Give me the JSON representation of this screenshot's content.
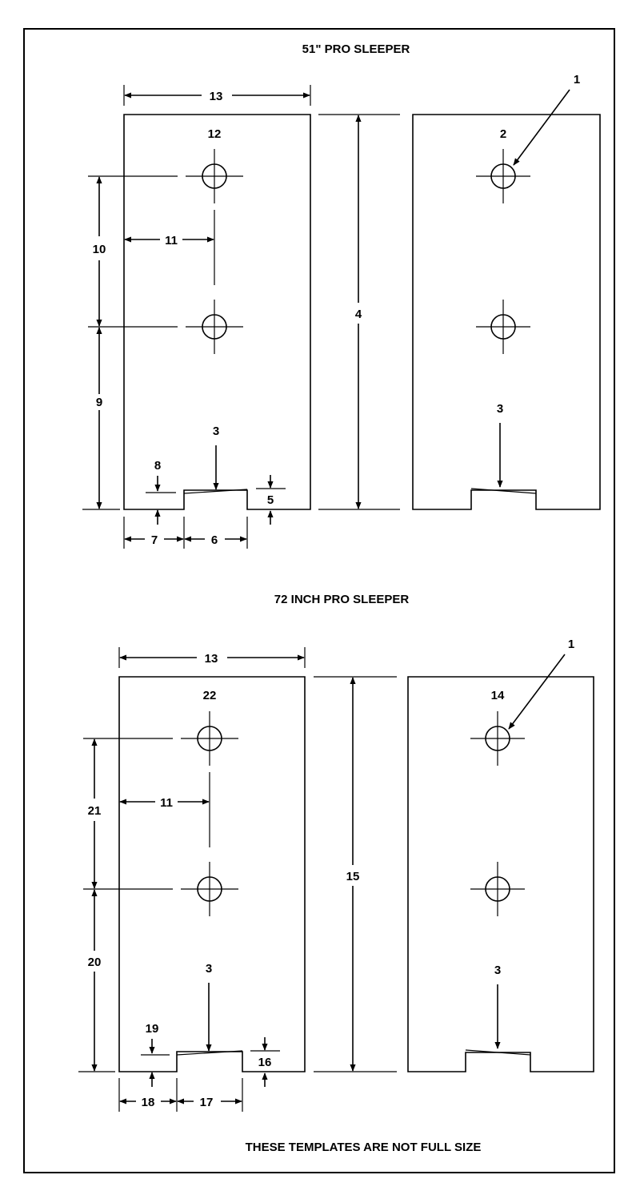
{
  "top_section": {
    "title": "51\" PRO SLEEPER",
    "labels": {
      "width": "13",
      "top_hole": "12",
      "hole_spacing": "10",
      "hole_offset": "11",
      "bottom_hole": "9",
      "length": "4",
      "notch_arrow": "3",
      "left_step": "8",
      "right_step": "5",
      "left_gap": "7",
      "notch_width": "6",
      "hole_callout": "1",
      "right_top_hole": "2",
      "right_notch_arrow": "3"
    }
  },
  "bottom_section": {
    "title": "72 INCH PRO SLEEPER",
    "labels": {
      "width": "13",
      "top_hole": "22",
      "hole_spacing": "21",
      "hole_offset": "11",
      "bottom_hole": "20",
      "length": "15",
      "notch_arrow": "3",
      "left_step": "19",
      "right_step": "16",
      "left_gap": "18",
      "notch_width": "17",
      "hole_callout": "1",
      "right_top_hole": "14",
      "right_notch_arrow": "3"
    }
  },
  "footer_note": "THESE TEMPLATES ARE NOT FULL SIZE"
}
